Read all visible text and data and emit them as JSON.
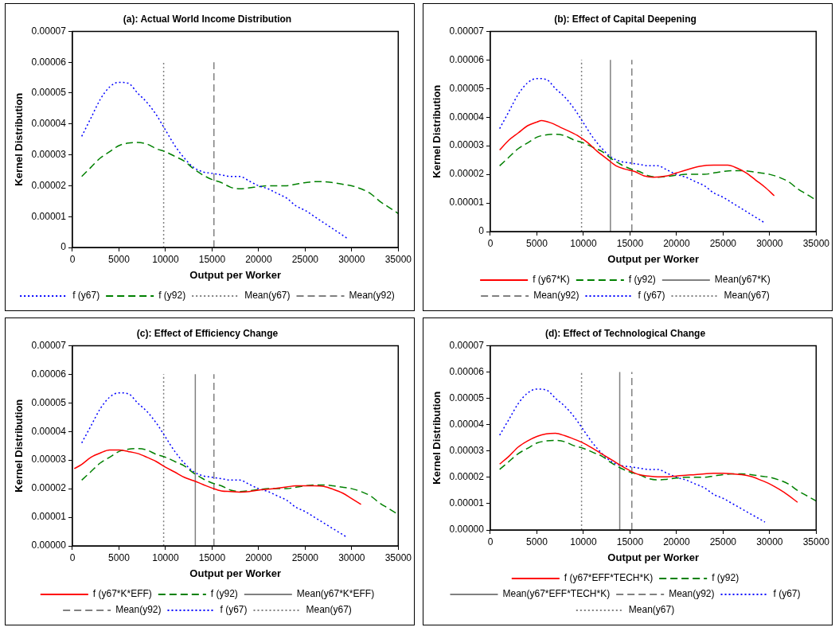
{
  "chart_data": [
    {
      "type": "line",
      "title": "(a): Actual World Income Distribution",
      "xlabel": "Output per Worker",
      "ylabel": "Kernel Distribution",
      "xlim": [
        0,
        35000
      ],
      "xticks": [
        0,
        5000,
        10000,
        15000,
        20000,
        25000,
        30000,
        35000
      ],
      "ylim": [
        0,
        7e-05
      ],
      "yticks": [
        {
          "value": 0,
          "label": "0"
        },
        {
          "value": 1e-05,
          "label": "0.00001"
        },
        {
          "value": 2e-05,
          "label": "0.00002"
        },
        {
          "value": 3e-05,
          "label": "0.00003"
        },
        {
          "value": 4e-05,
          "label": "0.00004"
        },
        {
          "value": 5e-05,
          "label": "0.00005"
        },
        {
          "value": 6e-05,
          "label": "0.00006"
        },
        {
          "value": 7e-05,
          "label": "0.00007"
        }
      ],
      "grid": false,
      "legend": "bottom",
      "marker": "none",
      "series": [
        {
          "name": "f (y67)",
          "color": "#0000ff",
          "line_style": "dotted",
          "x": [
            1000,
            2000,
            3000,
            4000,
            5000,
            6000,
            7000,
            8000,
            9000,
            10000,
            11000,
            12000,
            13000,
            14000,
            15000,
            16000,
            17000,
            18000,
            19000,
            20000,
            21000,
            22000,
            23000,
            24000,
            25000,
            26000,
            27000,
            28000,
            29000,
            29500
          ],
          "values": [
            3.6e-05,
            4.2e-05,
            4.8e-05,
            5.2e-05,
            5.35e-05,
            5.32e-05,
            5e-05,
            4.7e-05,
            4.3e-05,
            3.8e-05,
            3.3e-05,
            2.9e-05,
            2.6e-05,
            2.45e-05,
            2.4e-05,
            2.35e-05,
            2.3e-05,
            2.3e-05,
            2.15e-05,
            2e-05,
            1.9e-05,
            1.75e-05,
            1.6e-05,
            1.35e-05,
            1.2e-05,
            1e-05,
            8e-06,
            6e-06,
            4e-06,
            3e-06
          ]
        },
        {
          "name": "f (y92)",
          "color": "#008000",
          "line_style": "dashed",
          "x": [
            1000,
            2000,
            3000,
            4000,
            5000,
            6000,
            7000,
            8000,
            9000,
            10000,
            11000,
            12000,
            13000,
            14000,
            15000,
            16000,
            17000,
            18000,
            19000,
            20000,
            21000,
            22000,
            23000,
            24000,
            25000,
            26000,
            27000,
            28000,
            29000,
            30000,
            31000,
            32000,
            33000,
            34000,
            35000
          ],
          "values": [
            2.3e-05,
            2.6e-05,
            2.9e-05,
            3.1e-05,
            3.3e-05,
            3.38e-05,
            3.4e-05,
            3.35e-05,
            3.2e-05,
            3.1e-05,
            2.95e-05,
            2.8e-05,
            2.55e-05,
            2.35e-05,
            2.2e-05,
            2.1e-05,
            1.95e-05,
            1.9e-05,
            1.93e-05,
            1.97e-05,
            2e-05,
            2e-05,
            2e-05,
            2.05e-05,
            2.1e-05,
            2.13e-05,
            2.13e-05,
            2.1e-05,
            2.05e-05,
            2e-05,
            1.9e-05,
            1.75e-05,
            1.5e-05,
            1.3e-05,
            1.1e-05
          ]
        },
        {
          "name": "Mean(y67)",
          "color": "#808080",
          "line_style": "dotted",
          "x": [
            9800,
            9800
          ],
          "values": [
            0,
            6e-05
          ]
        },
        {
          "name": "Mean(y92)",
          "color": "#808080",
          "line_style": "dashed",
          "x": [
            15200,
            15200
          ],
          "values": [
            0,
            6e-05
          ]
        }
      ]
    },
    {
      "type": "line",
      "title": "(b): Effect of Capital Deepening",
      "xlabel": "Output per Worker",
      "ylabel": "Kernel Distribution",
      "xlim": [
        0,
        35000
      ],
      "xticks": [
        0,
        5000,
        10000,
        15000,
        20000,
        25000,
        30000,
        35000
      ],
      "ylim": [
        0,
        7e-05
      ],
      "yticks": [
        {
          "value": 0,
          "label": "0"
        },
        {
          "value": 1e-05,
          "label": "0.00001"
        },
        {
          "value": 2e-05,
          "label": "0.00002"
        },
        {
          "value": 3e-05,
          "label": "0.00003"
        },
        {
          "value": 4e-05,
          "label": "0.00004"
        },
        {
          "value": 5e-05,
          "label": "0.00005"
        },
        {
          "value": 6e-05,
          "label": "0.00006"
        },
        {
          "value": 7e-05,
          "label": "0.00007"
        }
      ],
      "grid": false,
      "legend": "bottom",
      "marker": "none",
      "series": [
        {
          "name": "f (y67*K)",
          "color": "#ff0000",
          "line_style": "solid",
          "x": [
            1000,
            2000,
            3000,
            4000,
            5000,
            5500,
            6500,
            7500,
            8500,
            9500,
            10500,
            11500,
            12500,
            13500,
            14500,
            15500,
            16500,
            17500,
            19000,
            20000,
            21000,
            22500,
            24000,
            25500,
            26500,
            27500,
            28500,
            29500,
            30500
          ],
          "values": [
            2.85e-05,
            3.2e-05,
            3.45e-05,
            3.7e-05,
            3.83e-05,
            3.88e-05,
            3.8e-05,
            3.65e-05,
            3.5e-05,
            3.33e-05,
            3.1e-05,
            2.8e-05,
            2.55e-05,
            2.3e-05,
            2.18e-05,
            2.1e-05,
            1.95e-05,
            1.9e-05,
            1.95e-05,
            2.05e-05,
            2.15e-05,
            2.28e-05,
            2.32e-05,
            2.32e-05,
            2.22e-05,
            2.05e-05,
            1.8e-05,
            1.55e-05,
            1.25e-05
          ]
        },
        {
          "name": "f (y92)",
          "color": "#008000",
          "line_style": "dashed",
          "x": [
            1000,
            2000,
            3000,
            4000,
            5000,
            6000,
            7000,
            8000,
            9000,
            10000,
            11000,
            12000,
            13000,
            14000,
            15000,
            16000,
            17000,
            18000,
            19000,
            20000,
            21000,
            22000,
            23000,
            24000,
            25000,
            26000,
            27000,
            28000,
            29000,
            30000,
            31000,
            32000,
            33000,
            34000,
            35000
          ],
          "values": [
            2.3e-05,
            2.6e-05,
            2.9e-05,
            3.1e-05,
            3.3e-05,
            3.38e-05,
            3.4e-05,
            3.35e-05,
            3.2e-05,
            3.1e-05,
            2.95e-05,
            2.8e-05,
            2.55e-05,
            2.35e-05,
            2.2e-05,
            2.1e-05,
            1.95e-05,
            1.9e-05,
            1.93e-05,
            1.97e-05,
            2e-05,
            2e-05,
            2e-05,
            2.05e-05,
            2.1e-05,
            2.13e-05,
            2.13e-05,
            2.1e-05,
            2.05e-05,
            2e-05,
            1.9e-05,
            1.75e-05,
            1.5e-05,
            1.3e-05,
            1.1e-05
          ]
        },
        {
          "name": "Mean(y67*K)",
          "color": "#808080",
          "line_style": "solid",
          "x": [
            12900,
            12900
          ],
          "values": [
            0,
            6e-05
          ]
        },
        {
          "name": "Mean(y92)",
          "color": "#808080",
          "line_style": "dashed",
          "x": [
            15200,
            15200
          ],
          "values": [
            0,
            6e-05
          ]
        },
        {
          "name": "f (y67)",
          "color": "#0000ff",
          "line_style": "dotted",
          "x": [
            1000,
            2000,
            3000,
            4000,
            5000,
            6000,
            7000,
            8000,
            9000,
            10000,
            11000,
            12000,
            13000,
            14000,
            15000,
            16000,
            17000,
            18000,
            19000,
            20000,
            21000,
            22000,
            23000,
            24000,
            25000,
            26000,
            27000,
            28000,
            29000,
            29500
          ],
          "values": [
            3.6e-05,
            4.2e-05,
            4.8e-05,
            5.2e-05,
            5.35e-05,
            5.32e-05,
            5e-05,
            4.7e-05,
            4.3e-05,
            3.8e-05,
            3.3e-05,
            2.9e-05,
            2.6e-05,
            2.45e-05,
            2.4e-05,
            2.35e-05,
            2.3e-05,
            2.3e-05,
            2.15e-05,
            2e-05,
            1.9e-05,
            1.75e-05,
            1.6e-05,
            1.35e-05,
            1.2e-05,
            1e-05,
            8e-06,
            6e-06,
            4e-06,
            3e-06
          ]
        },
        {
          "name": "Mean(y67)",
          "color": "#808080",
          "line_style": "dotted",
          "x": [
            9800,
            9800
          ],
          "values": [
            0,
            6e-05
          ]
        }
      ]
    },
    {
      "type": "line",
      "title": "(c): Effect of Efficiency Change",
      "xlabel": "Output per Worker",
      "ylabel": "Kernel Distribution",
      "xlim": [
        0,
        35000
      ],
      "xticks": [
        0,
        5000,
        10000,
        15000,
        20000,
        25000,
        30000,
        35000
      ],
      "ylim": [
        0,
        7e-05
      ],
      "yticks": [
        {
          "value": 0,
          "label": "0.00000"
        },
        {
          "value": 1e-05,
          "label": "0.00001"
        },
        {
          "value": 2e-05,
          "label": "0.00002"
        },
        {
          "value": 3e-05,
          "label": "0.00003"
        },
        {
          "value": 4e-05,
          "label": "0.00004"
        },
        {
          "value": 5e-05,
          "label": "0.00005"
        },
        {
          "value": 6e-05,
          "label": "0.00006"
        },
        {
          "value": 7e-05,
          "label": "0.00007"
        }
      ],
      "grid": false,
      "legend": "bottom",
      "marker": "none",
      "series": [
        {
          "name": "f (y67*K*EFF)",
          "color": "#ff0000",
          "line_style": "solid",
          "x": [
            200,
            1000,
            2000,
            3000,
            4000,
            5000,
            6000,
            7000,
            8000,
            9000,
            10000,
            11000,
            12000,
            13000,
            14000,
            15000,
            16000,
            17000,
            18000,
            19000,
            20000,
            21000,
            22000,
            23000,
            24000,
            25000,
            26000,
            27000,
            28000,
            29000,
            30000,
            31000
          ],
          "values": [
            2.7e-05,
            2.85e-05,
            3.1e-05,
            3.25e-05,
            3.35e-05,
            3.35e-05,
            3.3e-05,
            3.23e-05,
            3.1e-05,
            2.95e-05,
            2.75e-05,
            2.58e-05,
            2.4e-05,
            2.28e-05,
            2.15e-05,
            2.02e-05,
            1.92e-05,
            1.9e-05,
            1.88e-05,
            1.9e-05,
            1.95e-05,
            1.98e-05,
            2.02e-05,
            2.06e-05,
            2.1e-05,
            2.1e-05,
            2.1e-05,
            2.08e-05,
            1.98e-05,
            1.85e-05,
            1.65e-05,
            1.45e-05
          ]
        },
        {
          "name": "f (y92)",
          "color": "#008000",
          "line_style": "dashed",
          "x": [
            1000,
            2000,
            3000,
            4000,
            5000,
            6000,
            7000,
            8000,
            9000,
            10000,
            11000,
            12000,
            13000,
            14000,
            15000,
            16000,
            17000,
            18000,
            19000,
            20000,
            21000,
            22000,
            23000,
            24000,
            25000,
            26000,
            27000,
            28000,
            29000,
            30000,
            31000,
            32000,
            33000,
            34000,
            35000
          ],
          "values": [
            2.3e-05,
            2.6e-05,
            2.9e-05,
            3.1e-05,
            3.3e-05,
            3.38e-05,
            3.4e-05,
            3.35e-05,
            3.2e-05,
            3.1e-05,
            2.95e-05,
            2.8e-05,
            2.55e-05,
            2.35e-05,
            2.2e-05,
            2.1e-05,
            1.95e-05,
            1.9e-05,
            1.93e-05,
            1.97e-05,
            2e-05,
            2e-05,
            2e-05,
            2.05e-05,
            2.1e-05,
            2.13e-05,
            2.13e-05,
            2.1e-05,
            2.05e-05,
            2e-05,
            1.9e-05,
            1.75e-05,
            1.5e-05,
            1.3e-05,
            1.1e-05
          ]
        },
        {
          "name": "Mean(y67*K*EFF)",
          "color": "#808080",
          "line_style": "solid",
          "x": [
            13200,
            13200
          ],
          "values": [
            0,
            6e-05
          ]
        },
        {
          "name": "Mean(y92)",
          "color": "#808080",
          "line_style": "dashed",
          "x": [
            15200,
            15200
          ],
          "values": [
            0,
            6e-05
          ]
        },
        {
          "name": "f (y67)",
          "color": "#0000ff",
          "line_style": "dotted",
          "x": [
            1000,
            2000,
            3000,
            4000,
            5000,
            6000,
            7000,
            8000,
            9000,
            10000,
            11000,
            12000,
            13000,
            14000,
            15000,
            16000,
            17000,
            18000,
            19000,
            20000,
            21000,
            22000,
            23000,
            24000,
            25000,
            26000,
            27000,
            28000,
            29000,
            29500
          ],
          "values": [
            3.6e-05,
            4.2e-05,
            4.8e-05,
            5.2e-05,
            5.35e-05,
            5.32e-05,
            5e-05,
            4.7e-05,
            4.3e-05,
            3.8e-05,
            3.3e-05,
            2.9e-05,
            2.6e-05,
            2.45e-05,
            2.4e-05,
            2.35e-05,
            2.3e-05,
            2.3e-05,
            2.15e-05,
            2e-05,
            1.9e-05,
            1.75e-05,
            1.6e-05,
            1.35e-05,
            1.2e-05,
            1e-05,
            8e-06,
            6e-06,
            4e-06,
            3e-06
          ]
        },
        {
          "name": "Mean(y67)",
          "color": "#808080",
          "line_style": "dotted",
          "x": [
            9800,
            9800
          ],
          "values": [
            0,
            6e-05
          ]
        }
      ]
    },
    {
      "type": "line",
      "title": "(d): Effect of Technological Change",
      "xlabel": "Output per Worker",
      "ylabel": "Kernel Distribution",
      "xlim": [
        0,
        35000
      ],
      "xticks": [
        0,
        5000,
        10000,
        15000,
        20000,
        25000,
        30000,
        35000
      ],
      "ylim": [
        0,
        7e-05
      ],
      "yticks": [
        {
          "value": 0,
          "label": "0.00000"
        },
        {
          "value": 1e-05,
          "label": "0.00001"
        },
        {
          "value": 2e-05,
          "label": "0.00002"
        },
        {
          "value": 3e-05,
          "label": "0.00003"
        },
        {
          "value": 4e-05,
          "label": "0.00004"
        },
        {
          "value": 5e-05,
          "label": "0.00005"
        },
        {
          "value": 6e-05,
          "label": "0.00006"
        },
        {
          "value": 7e-05,
          "label": "0.00007"
        }
      ],
      "grid": false,
      "legend": "bottom",
      "marker": "none",
      "series": [
        {
          "name": "f (y67*EFF*TECH*K)",
          "color": "#ff0000",
          "line_style": "solid",
          "x": [
            1000,
            2000,
            3000,
            4000,
            5000,
            6000,
            7000,
            8000,
            9000,
            10000,
            11000,
            12000,
            13000,
            14000,
            15000,
            16000,
            17000,
            18000,
            19000,
            20000,
            21000,
            22000,
            23000,
            24000,
            25000,
            26000,
            27000,
            28000,
            29000,
            30000,
            31000,
            32000,
            33000
          ],
          "values": [
            2.5e-05,
            2.8e-05,
            3.15e-05,
            3.38e-05,
            3.55e-05,
            3.65e-05,
            3.67e-05,
            3.58e-05,
            3.45e-05,
            3.3e-05,
            3.1e-05,
            2.88e-05,
            2.67e-05,
            2.45e-05,
            2.25e-05,
            2.1e-05,
            2.05e-05,
            2.02e-05,
            2.02e-05,
            2.05e-05,
            2.08e-05,
            2.1e-05,
            2.13e-05,
            2.15e-05,
            2.15e-05,
            2.13e-05,
            2.1e-05,
            2.03e-05,
            1.9e-05,
            1.75e-05,
            1.55e-05,
            1.32e-05,
            1.05e-05
          ]
        },
        {
          "name": "f (y92)",
          "color": "#008000",
          "line_style": "dashed",
          "x": [
            1000,
            2000,
            3000,
            4000,
            5000,
            6000,
            7000,
            8000,
            9000,
            10000,
            11000,
            12000,
            13000,
            14000,
            15000,
            16000,
            17000,
            18000,
            19000,
            20000,
            21000,
            22000,
            23000,
            24000,
            25000,
            26000,
            27000,
            28000,
            29000,
            30000,
            31000,
            32000,
            33000,
            34000,
            35000
          ],
          "values": [
            2.3e-05,
            2.6e-05,
            2.9e-05,
            3.1e-05,
            3.3e-05,
            3.38e-05,
            3.4e-05,
            3.35e-05,
            3.2e-05,
            3.1e-05,
            2.95e-05,
            2.8e-05,
            2.55e-05,
            2.35e-05,
            2.2e-05,
            2.1e-05,
            1.95e-05,
            1.9e-05,
            1.93e-05,
            1.97e-05,
            2e-05,
            2e-05,
            2e-05,
            2.05e-05,
            2.1e-05,
            2.13e-05,
            2.13e-05,
            2.1e-05,
            2.05e-05,
            2e-05,
            1.9e-05,
            1.75e-05,
            1.5e-05,
            1.3e-05,
            1.1e-05
          ]
        },
        {
          "name": "Mean(y67*EFF*TECH*K)",
          "color": "#808080",
          "line_style": "solid",
          "x": [
            13900,
            13900
          ],
          "values": [
            0,
            6e-05
          ]
        },
        {
          "name": "Mean(y92)",
          "color": "#808080",
          "line_style": "dashed",
          "x": [
            15200,
            15200
          ],
          "values": [
            0,
            6e-05
          ]
        },
        {
          "name": "f (y67)",
          "color": "#0000ff",
          "line_style": "dotted",
          "x": [
            1000,
            2000,
            3000,
            4000,
            5000,
            6000,
            7000,
            8000,
            9000,
            10000,
            11000,
            12000,
            13000,
            14000,
            15000,
            16000,
            17000,
            18000,
            19000,
            20000,
            21000,
            22000,
            23000,
            24000,
            25000,
            26000,
            27000,
            28000,
            29000,
            29500
          ],
          "values": [
            3.6e-05,
            4.2e-05,
            4.8e-05,
            5.2e-05,
            5.35e-05,
            5.32e-05,
            5e-05,
            4.7e-05,
            4.3e-05,
            3.8e-05,
            3.3e-05,
            2.9e-05,
            2.6e-05,
            2.45e-05,
            2.4e-05,
            2.35e-05,
            2.3e-05,
            2.3e-05,
            2.15e-05,
            2e-05,
            1.9e-05,
            1.75e-05,
            1.6e-05,
            1.35e-05,
            1.2e-05,
            1e-05,
            8e-06,
            6e-06,
            4e-06,
            3e-06
          ]
        },
        {
          "name": "Mean(y67)",
          "color": "#808080",
          "line_style": "dotted",
          "x": [
            9800,
            9800
          ],
          "values": [
            0,
            6e-05
          ]
        }
      ]
    }
  ]
}
